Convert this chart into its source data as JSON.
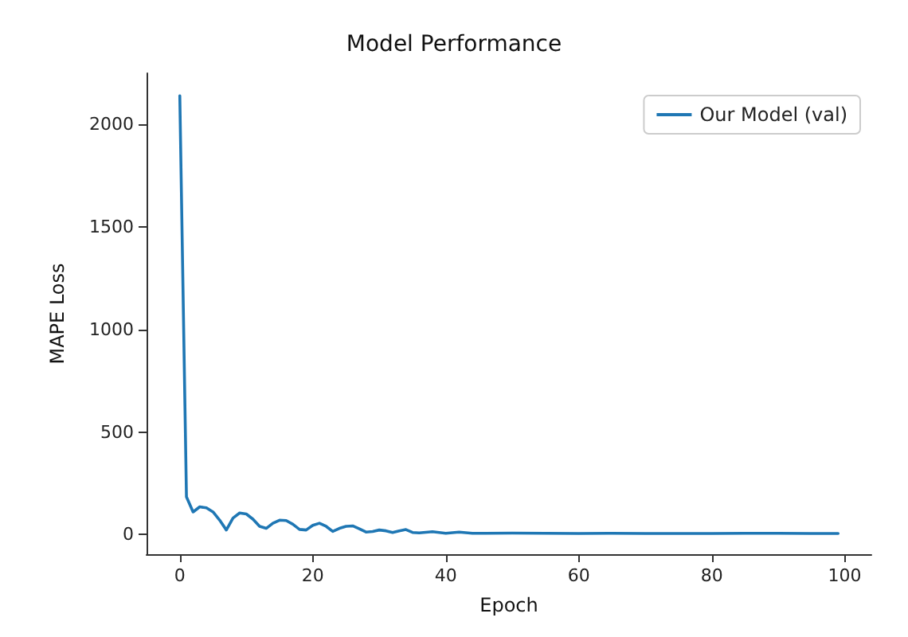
{
  "chart_data": {
    "type": "line",
    "title": "Model Performance",
    "xlabel": "Epoch",
    "ylabel": "MAPE Loss",
    "x": [
      0,
      1,
      2,
      3,
      4,
      5,
      6,
      7,
      8,
      9,
      10,
      11,
      12,
      13,
      14,
      15,
      16,
      17,
      18,
      19,
      20,
      21,
      22,
      23,
      24,
      25,
      26,
      27,
      28,
      29,
      30,
      31,
      32,
      33,
      34,
      35,
      36,
      38,
      40,
      42,
      44,
      46,
      50,
      55,
      60,
      65,
      70,
      75,
      80,
      85,
      90,
      95,
      99
    ],
    "series": [
      {
        "name": "Our Model (val)",
        "color": "#1f77b4",
        "values": [
          2140,
          184,
          110,
          135,
          130,
          110,
          70,
          22,
          80,
          105,
          100,
          75,
          40,
          30,
          55,
          70,
          68,
          50,
          25,
          22,
          45,
          55,
          40,
          15,
          30,
          40,
          42,
          28,
          12,
          15,
          22,
          18,
          10,
          18,
          24,
          10,
          8,
          14,
          6,
          12,
          6,
          6,
          7,
          6,
          5,
          6,
          5,
          5,
          5,
          6,
          6,
          5,
          5
        ]
      }
    ],
    "xlim": [
      -5,
      104
    ],
    "ylim": [
      -96,
      2250
    ],
    "xticks": [
      0,
      20,
      40,
      60,
      80,
      100
    ],
    "yticks": [
      0,
      500,
      1000,
      1500,
      2000
    ],
    "grid": false,
    "legend": "top right",
    "marker": "none",
    "line_style": "solid"
  }
}
